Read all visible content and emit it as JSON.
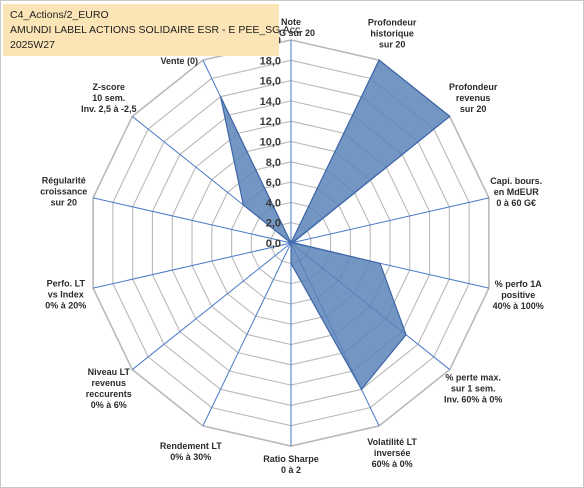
{
  "title_lines": [
    "C4_Actions/2_EURO",
    "AMUNDI LABEL ACTIONS SOLIDAIRE ESR - E PEE_SG Acc",
    "2025W27"
  ],
  "chart_data": {
    "type": "radar",
    "r_range": [
      0,
      20
    ],
    "r_ticks": [
      "0,0",
      "2,0",
      "4,0",
      "6,0",
      "8,0",
      "10,0",
      "12,0",
      "14,0",
      "16,0",
      "18,0",
      "20,0"
    ],
    "grid": true,
    "axes": [
      {
        "label": "Note\nESG sur 20",
        "value": 0.0
      },
      {
        "label": "Profondeur\nhistorique\nsur 20",
        "value": 20.0
      },
      {
        "label": "Profondeur\nrevenus\nsur 20",
        "value": 20.0
      },
      {
        "label": "Capi. bours.\nen MdEUR\n0 à 60 G€",
        "value": 0.2
      },
      {
        "label": "% perfo 1A\npositive\n40% à 100%",
        "value": 9.0
      },
      {
        "label": "% perte max.\nsur 1 sem.\nInv. 60% à 0%",
        "value": 14.5
      },
      {
        "label": "Volatilité LT\ninversée\n60% à 0%",
        "value": 16.0
      },
      {
        "label": "Ratio Sharpe\n0 à 2",
        "value": 2.0
      },
      {
        "label": "Rendement LT\n0% à 30%",
        "value": 0.0
      },
      {
        "label": "Niveau LT\nrevenus\nreccurents\n0% à 6%",
        "value": 0.0
      },
      {
        "label": "Perfo. LT\nvs Index\n0% à 20%",
        "value": 0.0
      },
      {
        "label": "Régularité\ncroissance\nsur 20",
        "value": 0.0
      },
      {
        "label": "Z-score\n10 sem.\nInv. 2,5 à -2,5",
        "value": 6.0
      },
      {
        "label": "Momentum\nAchat (20) /\nVente (0)",
        "value": 16.0
      }
    ],
    "series_fill": "#5b84b8",
    "series_stroke": "#3f66a8",
    "grid_color": "#b9b9b9",
    "spoke_color": "#4a7ac8"
  }
}
